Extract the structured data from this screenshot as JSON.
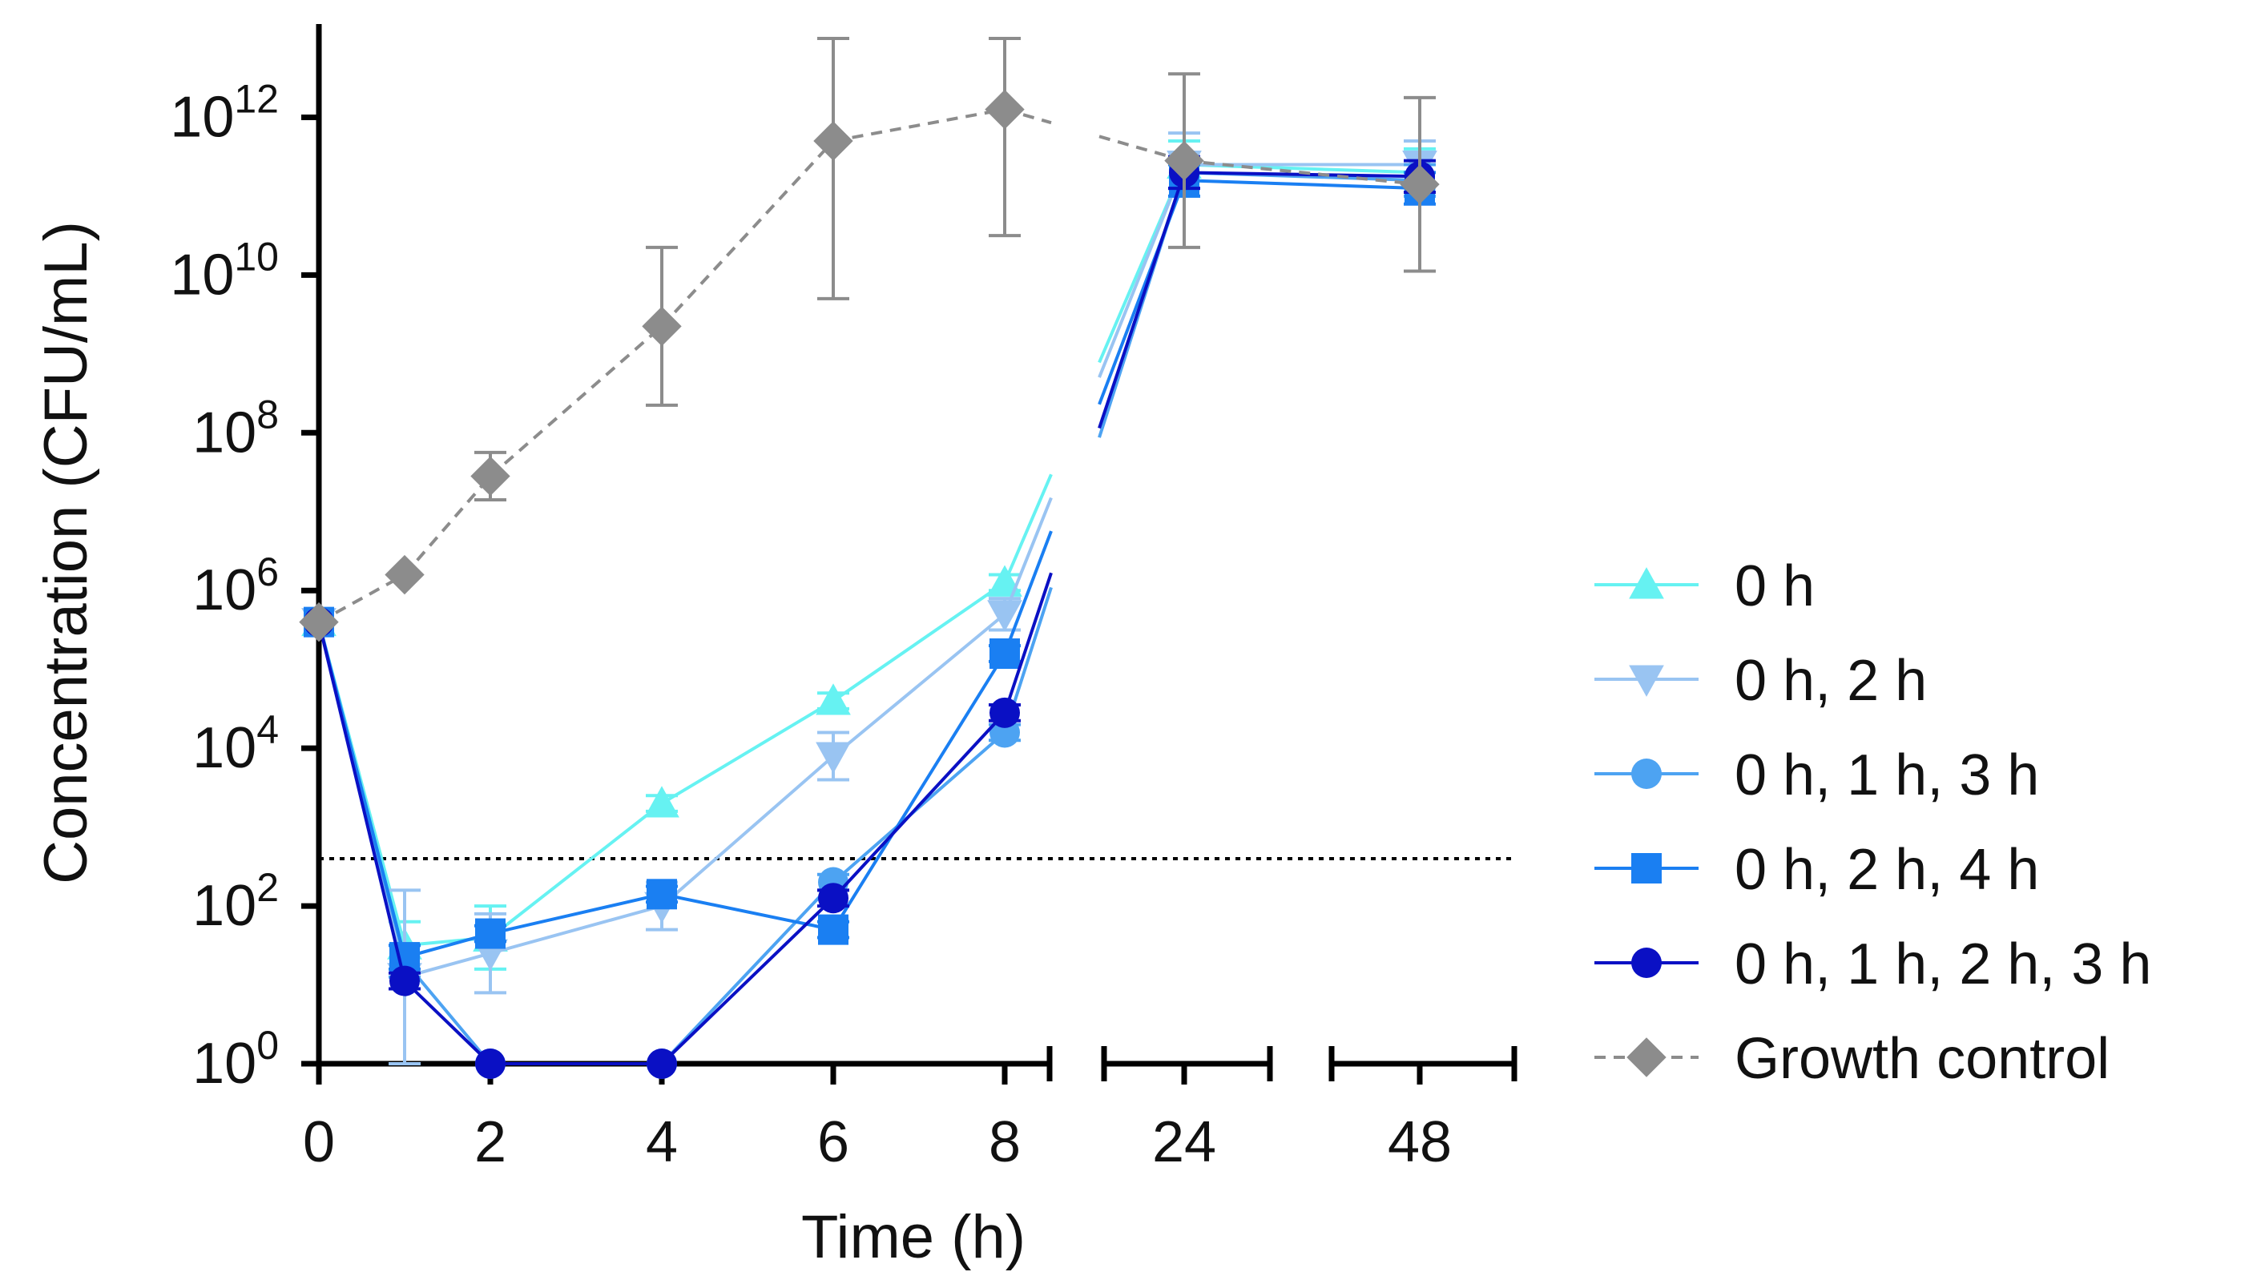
{
  "chart_data": {
    "type": "line",
    "title": "",
    "xlabel": "Time (h)",
    "ylabel": "Concentration (CFU/mL)",
    "y_scale": "log10",
    "ylim_exponent": [
      0,
      13
    ],
    "x_tick_labels": [
      "0",
      "2",
      "4",
      "6",
      "8",
      "24",
      "48"
    ],
    "y_tick_base": "10",
    "y_tick_exponents": [
      "0",
      "2",
      "4",
      "6",
      "8",
      "10",
      "12"
    ],
    "lower_limit_of_quantification_log10": 2.6,
    "series": [
      {
        "name": "0 h",
        "color": "#66f2f2",
        "marker": "triangle-up",
        "dashed": false,
        "x": [
          0,
          1,
          2,
          4,
          6,
          8,
          24,
          48
        ],
        "log10_y": [
          5.6,
          1.5,
          1.6,
          3.3,
          4.6,
          6.1,
          11.4,
          11.3
        ],
        "err_log10": [
          0,
          0.3,
          0.4,
          0.1,
          0.1,
          0.1,
          0.3,
          0.3
        ]
      },
      {
        "name": "0 h, 2 h",
        "color": "#99c4f2",
        "marker": "triangle-down",
        "dashed": false,
        "x": [
          0,
          1,
          2,
          4,
          6,
          8,
          24,
          48
        ],
        "log10_y": [
          5.6,
          1.1,
          1.4,
          2.0,
          3.9,
          5.7,
          11.4,
          11.4
        ],
        "err_log10": [
          0,
          1.1,
          0.5,
          0.3,
          0.3,
          0.2,
          0.4,
          0.3
        ]
      },
      {
        "name": "0 h, 1 h, 3 h",
        "color": "#4da3f2",
        "marker": "circle",
        "dashed": false,
        "x": [
          0,
          1,
          2,
          4,
          6,
          8,
          24,
          48
        ],
        "log10_y": [
          5.6,
          1.3,
          0.0,
          0.0,
          2.3,
          4.2,
          11.3,
          11.2
        ],
        "err_log10": [
          0,
          0.2,
          0,
          0,
          0.1,
          0.1,
          0.2,
          0.2
        ]
      },
      {
        "name": "0 h, 2 h, 4 h",
        "color": "#1a7ff2",
        "marker": "square",
        "dashed": false,
        "x": [
          0,
          1,
          2,
          4,
          6,
          8,
          24,
          48
        ],
        "log10_y": [
          5.6,
          1.35,
          1.65,
          2.15,
          1.7,
          5.2,
          11.2,
          11.1
        ],
        "err_log10": [
          0,
          0.15,
          0.1,
          0.1,
          0.1,
          0.1,
          0.2,
          0.2
        ]
      },
      {
        "name": "0 h, 1 h, 2 h, 3 h",
        "color": "#0a10c4",
        "marker": "circle",
        "dashed": false,
        "x": [
          0,
          1,
          2,
          4,
          6,
          8,
          24,
          48
        ],
        "log10_y": [
          5.6,
          1.05,
          0.0,
          0.0,
          2.1,
          4.45,
          11.3,
          11.25
        ],
        "err_log10": [
          0,
          0.1,
          0,
          0,
          0.1,
          0.1,
          0.2,
          0.2
        ]
      },
      {
        "name": "Growth control",
        "color": "#8c8c8c",
        "marker": "diamond",
        "dashed": true,
        "x": [
          0,
          1,
          2,
          4,
          6,
          8,
          24,
          48
        ],
        "log10_y": [
          5.6,
          6.2,
          7.45,
          9.35,
          11.7,
          12.1,
          11.45,
          11.15
        ],
        "err_log10": [
          0,
          0,
          0.3,
          1.0,
          2.0,
          1.6,
          1.1,
          1.1
        ]
      }
    ]
  }
}
